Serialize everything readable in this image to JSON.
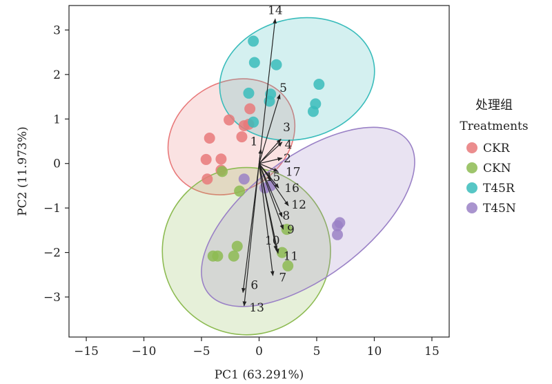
{
  "chart_data": {
    "type": "scatter",
    "subtype": "pca_biplot",
    "xlabel": "PC1 (63.291%)",
    "ylabel": "PC2 (11.973%)",
    "xlim": [
      -16.5,
      16.5
    ],
    "ylim": [
      -3.9,
      3.55
    ],
    "xticks": [
      -15,
      -10,
      -5,
      0,
      5,
      10,
      15
    ],
    "yticks": [
      -3,
      -2,
      -1,
      0,
      1,
      2,
      3
    ],
    "xtick_labels": [
      "−15",
      "−10",
      "−5",
      "0",
      "5",
      "10",
      "15"
    ],
    "ytick_labels": [
      "−3",
      "−2",
      "−1",
      "0",
      "1",
      "2",
      "3"
    ],
    "grid": false,
    "legend": {
      "title_line1": "处理组",
      "title_line2": "Treatments",
      "placement": "right"
    },
    "series": [
      {
        "name": "CKR",
        "color": "#e8797a",
        "points": [
          [
            -4.3,
            0.57
          ],
          [
            -2.6,
            0.98
          ],
          [
            -1.3,
            0.85
          ],
          [
            -0.9,
            0.88
          ],
          [
            -0.8,
            1.23
          ],
          [
            -1.5,
            0.6
          ],
          [
            -4.6,
            0.09
          ],
          [
            -3.3,
            0.1
          ],
          [
            -3.3,
            -0.15
          ],
          [
            -4.5,
            -0.35
          ]
        ],
        "ellipse": {
          "cx": -2.4,
          "cy": 0.6,
          "rx": 4.7,
          "ry": 1.5,
          "angle": 58
        }
      },
      {
        "name": "CKN",
        "color": "#8dbb52",
        "points": [
          [
            -4.0,
            -2.08
          ],
          [
            -3.6,
            -2.08
          ],
          [
            -2.2,
            -2.08
          ],
          [
            -1.9,
            -1.86
          ],
          [
            -1.7,
            -0.62
          ],
          [
            -3.2,
            -0.18
          ],
          [
            2.0,
            -2.0
          ],
          [
            2.5,
            -2.3
          ],
          [
            2.4,
            -1.48
          ]
        ],
        "ellipse": {
          "cx": -1.1,
          "cy": -1.97,
          "rx": 7.3,
          "ry": 1.88,
          "angle": 0
        }
      },
      {
        "name": "T45R",
        "color": "#39bcbb",
        "points": [
          [
            -0.5,
            2.75
          ],
          [
            -0.4,
            2.27
          ],
          [
            1.5,
            2.22
          ],
          [
            -0.9,
            1.58
          ],
          [
            1.0,
            1.56
          ],
          [
            0.9,
            1.4
          ],
          [
            5.2,
            1.78
          ],
          [
            4.9,
            1.34
          ],
          [
            4.7,
            1.17
          ],
          [
            -0.5,
            0.93
          ]
        ],
        "ellipse": {
          "cx": 3.3,
          "cy": 1.9,
          "rx": 6.8,
          "ry": 1.35,
          "angle": -14
        }
      },
      {
        "name": "T45N",
        "color": "#9a81c6",
        "points": [
          [
            -1.3,
            -0.35
          ],
          [
            0.5,
            -0.55
          ],
          [
            1.0,
            -0.5
          ],
          [
            7.0,
            -1.33
          ],
          [
            6.8,
            -1.4
          ],
          [
            6.8,
            -1.6
          ]
        ],
        "ellipse": {
          "cx": 4.25,
          "cy": -1.2,
          "rx": 10.9,
          "ry": 1.35,
          "angle": -37
        }
      }
    ],
    "loadings": [
      {
        "label": "1",
        "x": 0.15,
        "y": 0.32
      },
      {
        "label": "2",
        "x": 2.0,
        "y": 0.12
      },
      {
        "label": "3",
        "x": 1.9,
        "y": 0.55
      },
      {
        "label": "4",
        "x": 2.0,
        "y": 0.48
      },
      {
        "label": "5",
        "x": 1.8,
        "y": 1.55
      },
      {
        "label": "6",
        "x": -1.4,
        "y": -2.9
      },
      {
        "label": "7",
        "x": 1.2,
        "y": -2.52
      },
      {
        "label": "8",
        "x": 2.0,
        "y": -1.2
      },
      {
        "label": "9",
        "x": 2.1,
        "y": -1.48
      },
      {
        "label": "10",
        "x": 1.5,
        "y": -1.95
      },
      {
        "label": "11",
        "x": 1.65,
        "y": -2.02
      },
      {
        "label": "12",
        "x": 2.55,
        "y": -0.95
      },
      {
        "label": "14",
        "x": 1.4,
        "y": 3.25
      },
      {
        "label": "13",
        "x": -1.3,
        "y": -3.2
      },
      {
        "label": "15",
        "x": 1.05,
        "y": -0.38
      },
      {
        "label": "16",
        "x": 1.7,
        "y": -0.55
      },
      {
        "label": "17",
        "x": 1.65,
        "y": -0.18
      }
    ],
    "loading_label_positions": [
      {
        "label": "14",
        "x": 1.4,
        "y": 3.45
      },
      {
        "label": "5",
        "x": 2.1,
        "y": 1.7
      },
      {
        "label": "3",
        "x": 2.4,
        "y": 0.82
      },
      {
        "label": "4",
        "x": 2.55,
        "y": 0.43
      },
      {
        "label": "1",
        "x": -0.45,
        "y": 0.5
      },
      {
        "label": "2",
        "x": 2.45,
        "y": 0.12
      },
      {
        "label": "17",
        "x": 2.95,
        "y": -0.18
      },
      {
        "label": "15",
        "x": 1.2,
        "y": -0.3
      },
      {
        "label": "16",
        "x": 2.85,
        "y": -0.55
      },
      {
        "label": "12",
        "x": 3.45,
        "y": -0.92
      },
      {
        "label": "8",
        "x": 2.35,
        "y": -1.17
      },
      {
        "label": "9",
        "x": 2.75,
        "y": -1.48
      },
      {
        "label": "10",
        "x": 1.15,
        "y": -1.73
      },
      {
        "label": "11",
        "x": 2.75,
        "y": -2.08
      },
      {
        "label": "7",
        "x": 2.05,
        "y": -2.56
      },
      {
        "label": "6",
        "x": -0.4,
        "y": -2.73
      },
      {
        "label": "13",
        "x": -0.2,
        "y": -3.23
      }
    ]
  }
}
